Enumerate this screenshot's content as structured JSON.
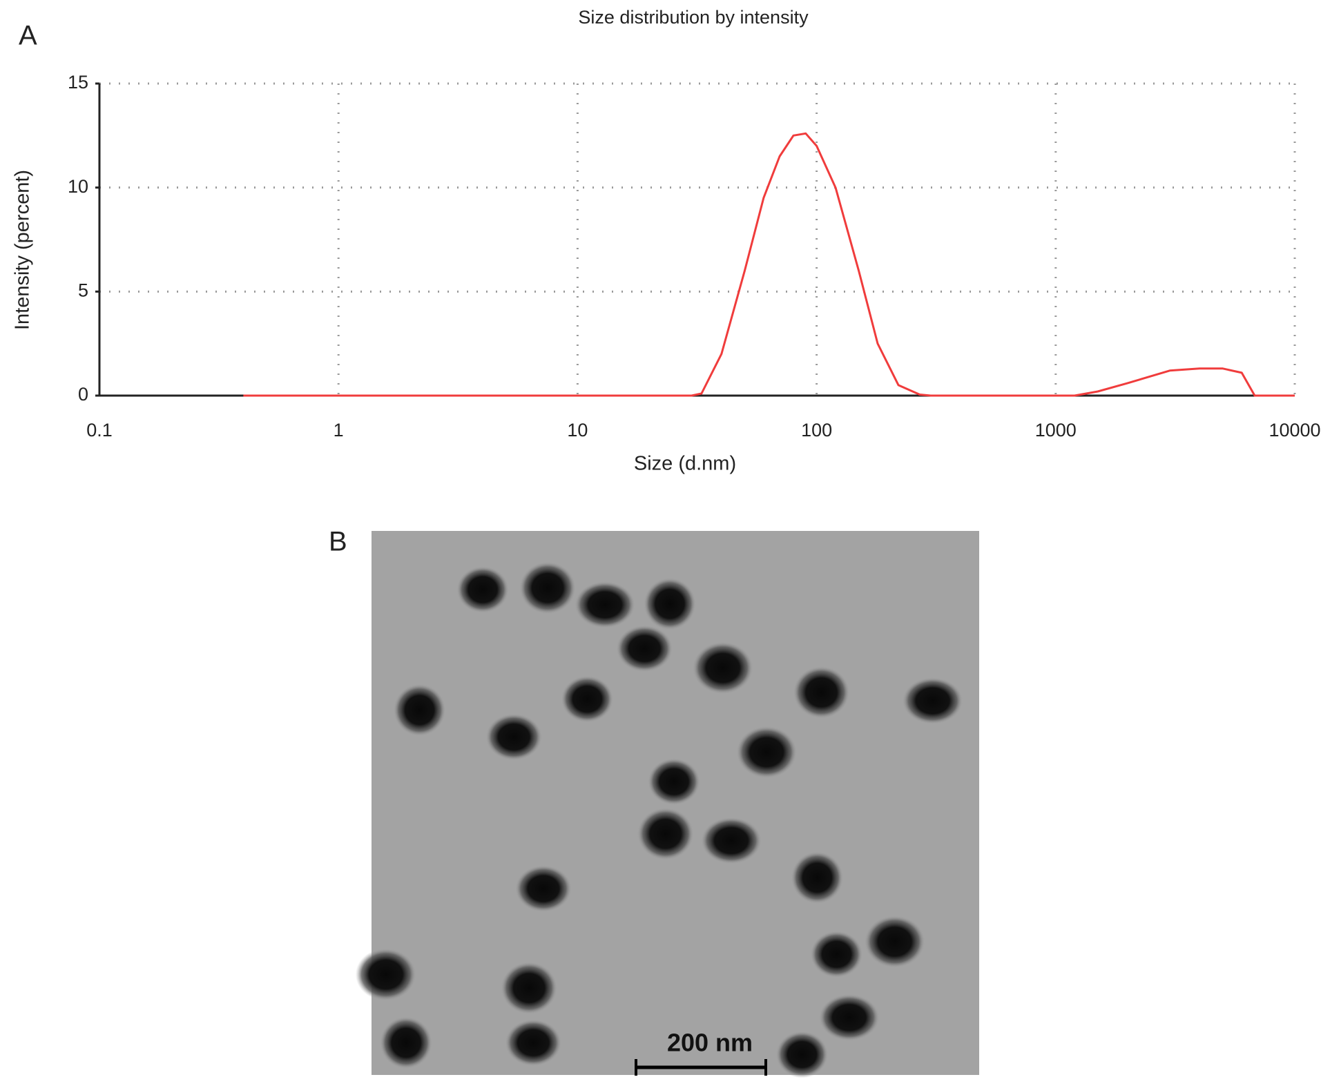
{
  "panel_labels": [
    "A",
    "B"
  ],
  "chart_data": {
    "type": "line",
    "title": "Size distribution by intensity",
    "xlabel": "Size (d.nm)",
    "ylabel": "Intensity (percent)",
    "xscale": "log",
    "grid": true,
    "xlim": [
      0.1,
      10000
    ],
    "xticks": [
      0.1,
      1,
      10,
      100,
      1000,
      10000
    ],
    "ylim": [
      0,
      15
    ],
    "yticks": [
      0,
      5,
      10,
      15
    ],
    "x": [
      0.4,
      1,
      5,
      10,
      20,
      30,
      33,
      40,
      50,
      60,
      70,
      80,
      90,
      100,
      120,
      150,
      180,
      220,
      270,
      300,
      500,
      1000,
      1200,
      1500,
      2000,
      3000,
      4000,
      5000,
      6000,
      6800,
      10000
    ],
    "series": [
      {
        "color": "#f03c3c",
        "values": [
          0,
          0,
          0,
          0,
          0,
          0,
          0.1,
          2,
          6,
          9.5,
          11.5,
          12.5,
          12.6,
          12,
          10,
          6,
          2.5,
          0.5,
          0.05,
          0,
          0,
          0,
          0,
          0.2,
          0.6,
          1.2,
          1.3,
          1.3,
          1.1,
          0,
          0
        ]
      }
    ]
  },
  "image": {
    "scale_bar_label": "200 nm"
  }
}
